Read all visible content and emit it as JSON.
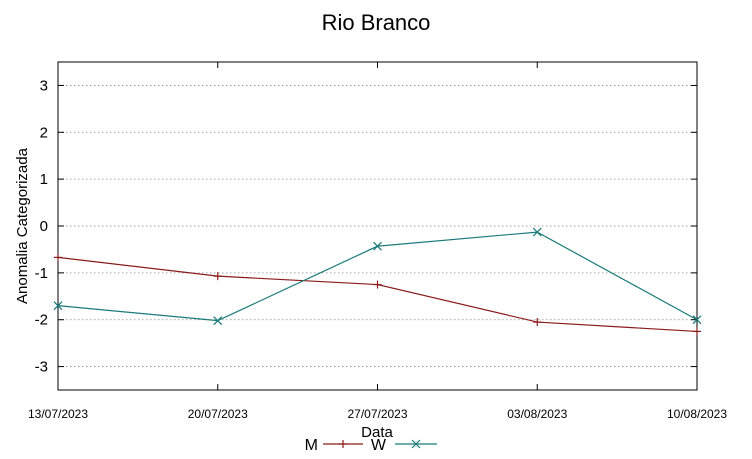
{
  "chart_data": {
    "type": "line",
    "title": "Rio Branco",
    "xlabel": "Data",
    "ylabel": "Anomalia Categorizada",
    "categories": [
      "13/07/2023",
      "20/07/2023",
      "27/07/2023",
      "03/08/2023",
      "10/08/2023"
    ],
    "ylim": [
      -3.5,
      3.5
    ],
    "yticks": [
      3,
      2,
      1,
      0,
      -1,
      -2,
      -3
    ],
    "grid": true,
    "legend_position": "bottom-center",
    "series": [
      {
        "name": "M",
        "color": "#8b1a1a",
        "marker": "plus",
        "values": [
          -0.67,
          -1.07,
          -1.25,
          -2.05,
          -2.25
        ]
      },
      {
        "name": "W",
        "color": "#1a7a7a",
        "marker": "x",
        "values": [
          -1.7,
          -2.02,
          -0.43,
          -0.13,
          -2.0
        ]
      }
    ]
  }
}
